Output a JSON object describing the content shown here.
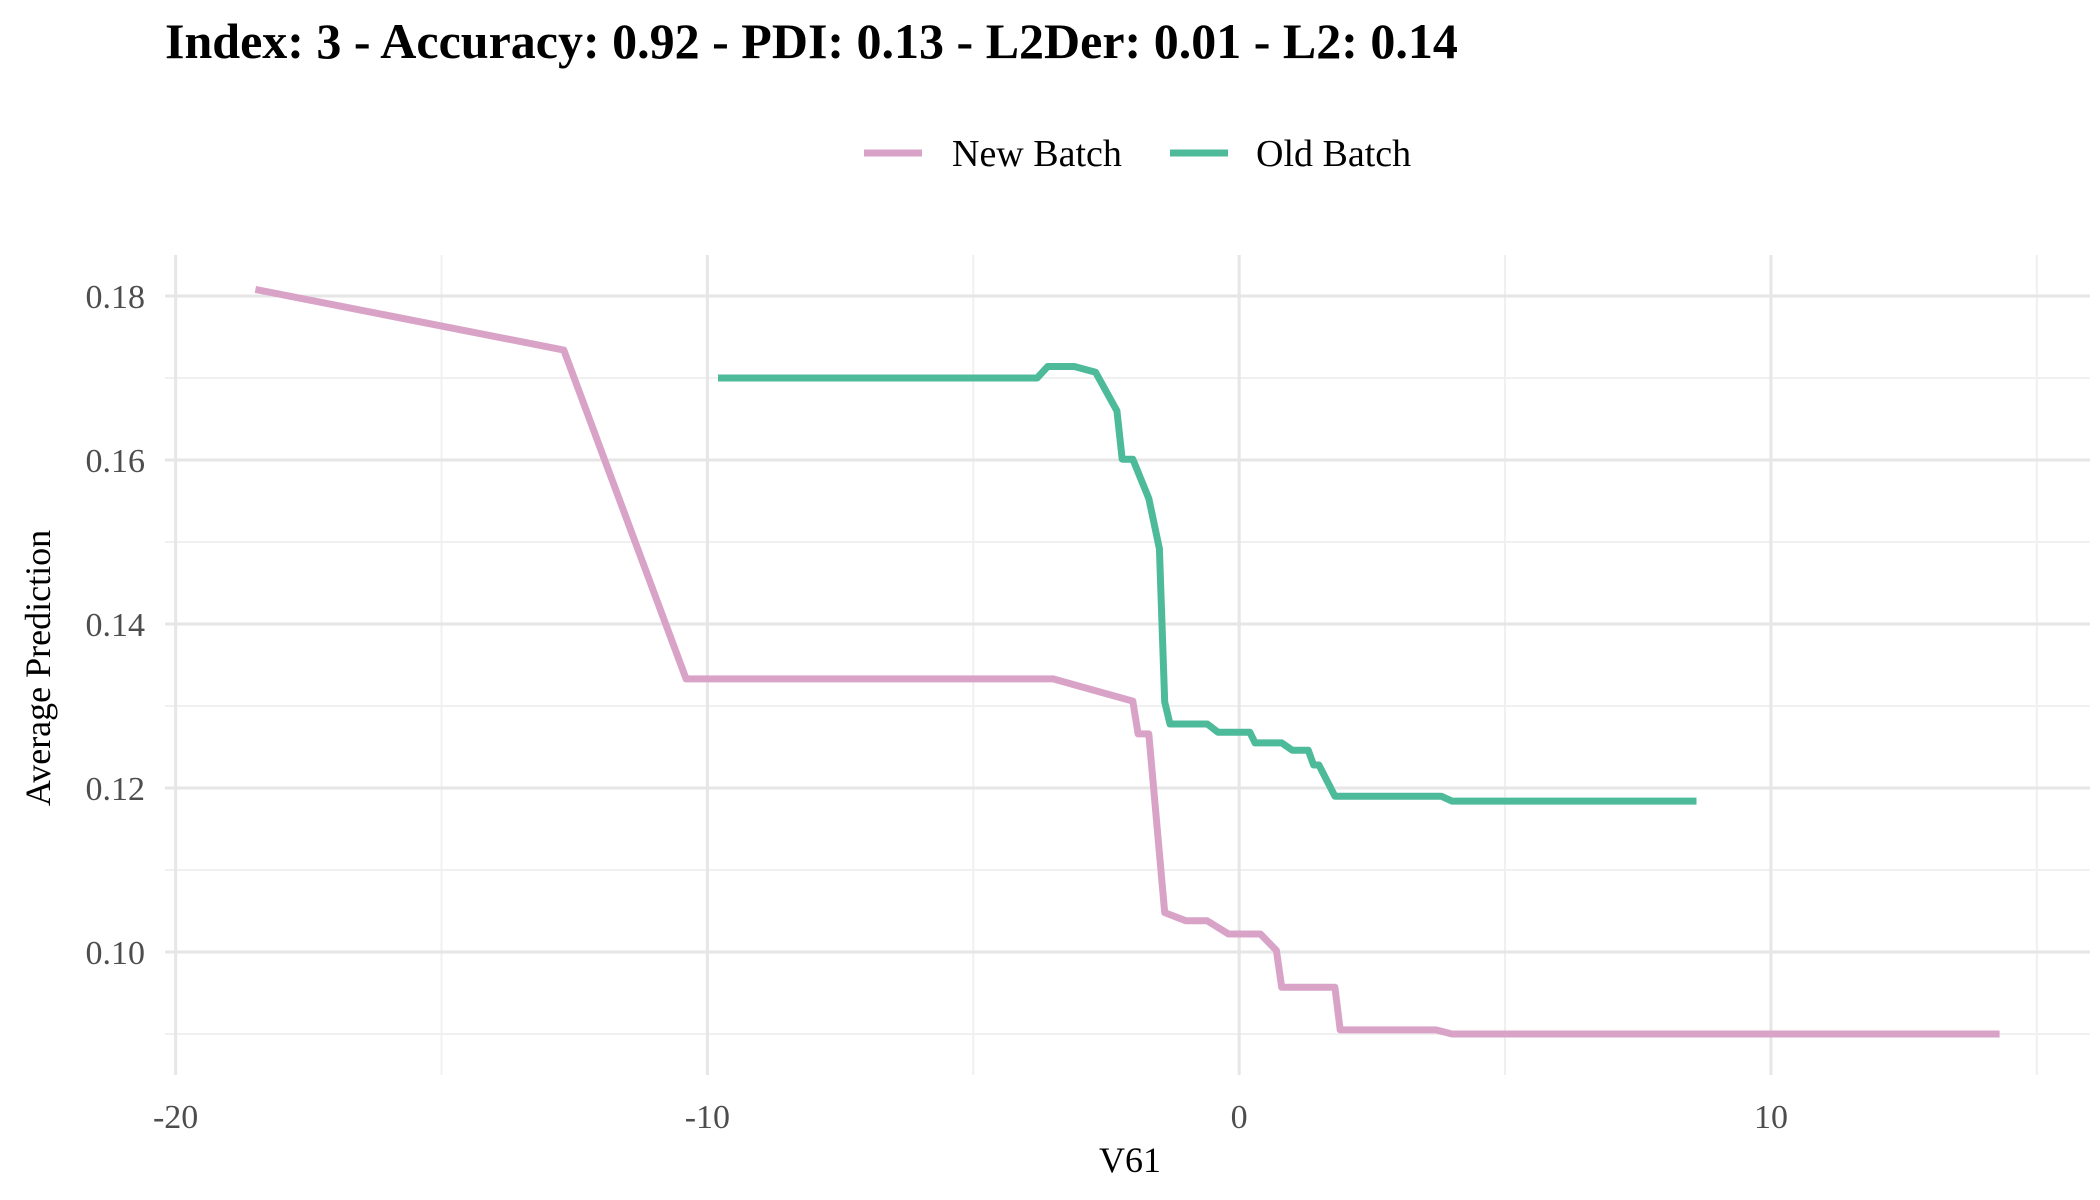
{
  "chart_data": {
    "type": "line",
    "title": "Index: 3 - Accuracy: 0.92 - PDI: 0.13 - L2Der: 0.01 - L2: 0.14",
    "xlabel": "V61",
    "ylabel": "Average Prediction",
    "xlim": [
      -20.2,
      16
    ],
    "ylim": [
      0.085,
      0.185
    ],
    "xticks": [
      -20,
      -10,
      0,
      10
    ],
    "xtick_labels": [
      "-20",
      "-10",
      "0",
      "10"
    ],
    "yticks": [
      0.1,
      0.12,
      0.14,
      0.16,
      0.18
    ],
    "ytick_labels": [
      "0.10",
      "0.12",
      "0.14",
      "0.16",
      "0.18"
    ],
    "grid": true,
    "legend_position": "top",
    "series": [
      {
        "name": "New Batch",
        "color": "#d9a3c8",
        "points": [
          [
            -18.5,
            0.1808
          ],
          [
            -12.7,
            0.1734
          ],
          [
            -10.4,
            0.1333
          ],
          [
            -3.5,
            0.1333
          ],
          [
            -2.0,
            0.1306
          ],
          [
            -1.9,
            0.1266
          ],
          [
            -1.7,
            0.1266
          ],
          [
            -1.4,
            0.1048
          ],
          [
            -1.0,
            0.1038
          ],
          [
            -0.6,
            0.1038
          ],
          [
            -0.2,
            0.1022
          ],
          [
            0.4,
            0.1022
          ],
          [
            0.7,
            0.1002
          ],
          [
            0.8,
            0.0957
          ],
          [
            1.7,
            0.0957
          ],
          [
            1.8,
            0.0957
          ],
          [
            1.9,
            0.0905
          ],
          [
            3.7,
            0.0905
          ],
          [
            4.0,
            0.09
          ],
          [
            14.3,
            0.09
          ]
        ]
      },
      {
        "name": "Old Batch",
        "color": "#4dbb99",
        "points": [
          [
            -9.8,
            0.17
          ],
          [
            -3.8,
            0.17
          ],
          [
            -3.6,
            0.1714
          ],
          [
            -3.1,
            0.1714
          ],
          [
            -2.7,
            0.1707
          ],
          [
            -2.3,
            0.166
          ],
          [
            -2.2,
            0.1601
          ],
          [
            -2.0,
            0.1601
          ],
          [
            -1.7,
            0.1553
          ],
          [
            -1.5,
            0.1492
          ],
          [
            -1.4,
            0.1305
          ],
          [
            -1.3,
            0.1278
          ],
          [
            -0.6,
            0.1278
          ],
          [
            -0.4,
            0.1268
          ],
          [
            0.2,
            0.1268
          ],
          [
            0.3,
            0.1255
          ],
          [
            0.8,
            0.1255
          ],
          [
            1.0,
            0.1246
          ],
          [
            1.3,
            0.1246
          ],
          [
            1.4,
            0.1228
          ],
          [
            1.5,
            0.1228
          ],
          [
            1.8,
            0.119
          ],
          [
            3.8,
            0.119
          ],
          [
            4.0,
            0.1184
          ],
          [
            8.6,
            0.1184
          ]
        ]
      }
    ]
  }
}
